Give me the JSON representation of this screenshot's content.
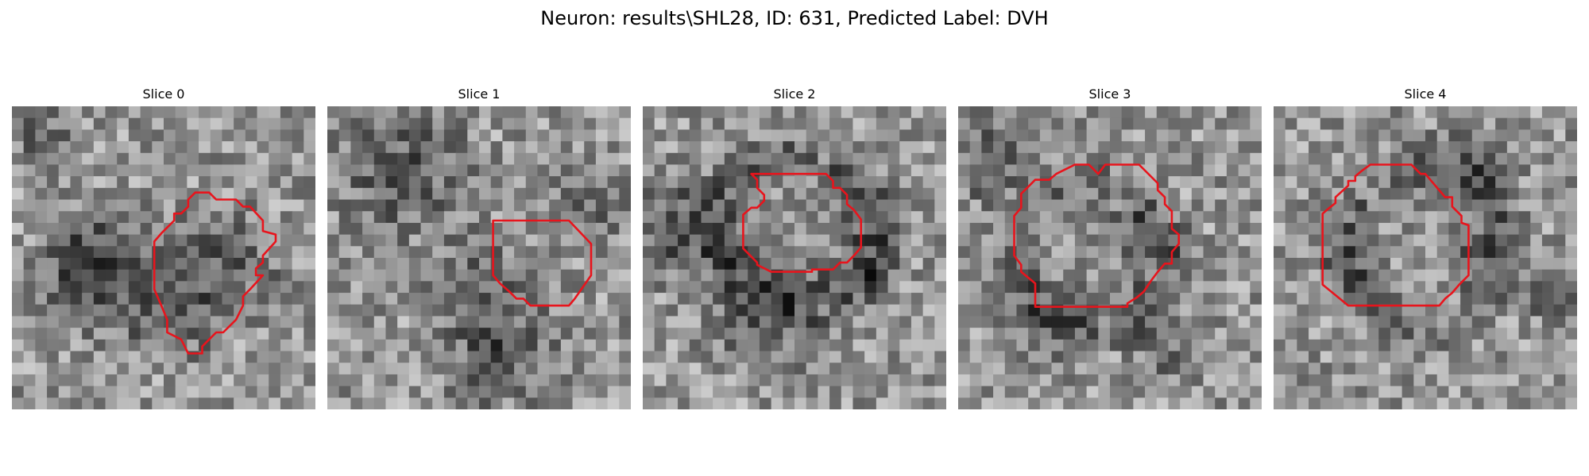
{
  "figure": {
    "title": "Neuron: results\\SHL28, ID: 631, Predicted Label: DVH",
    "outline_color": "#e8141c",
    "colormap": "grayscale"
  },
  "slices": [
    {
      "label": "Slice 0"
    },
    {
      "label": "Slice 1"
    },
    {
      "label": "Slice 2"
    },
    {
      "label": "Slice 3"
    },
    {
      "label": "Slice 4"
    }
  ]
}
